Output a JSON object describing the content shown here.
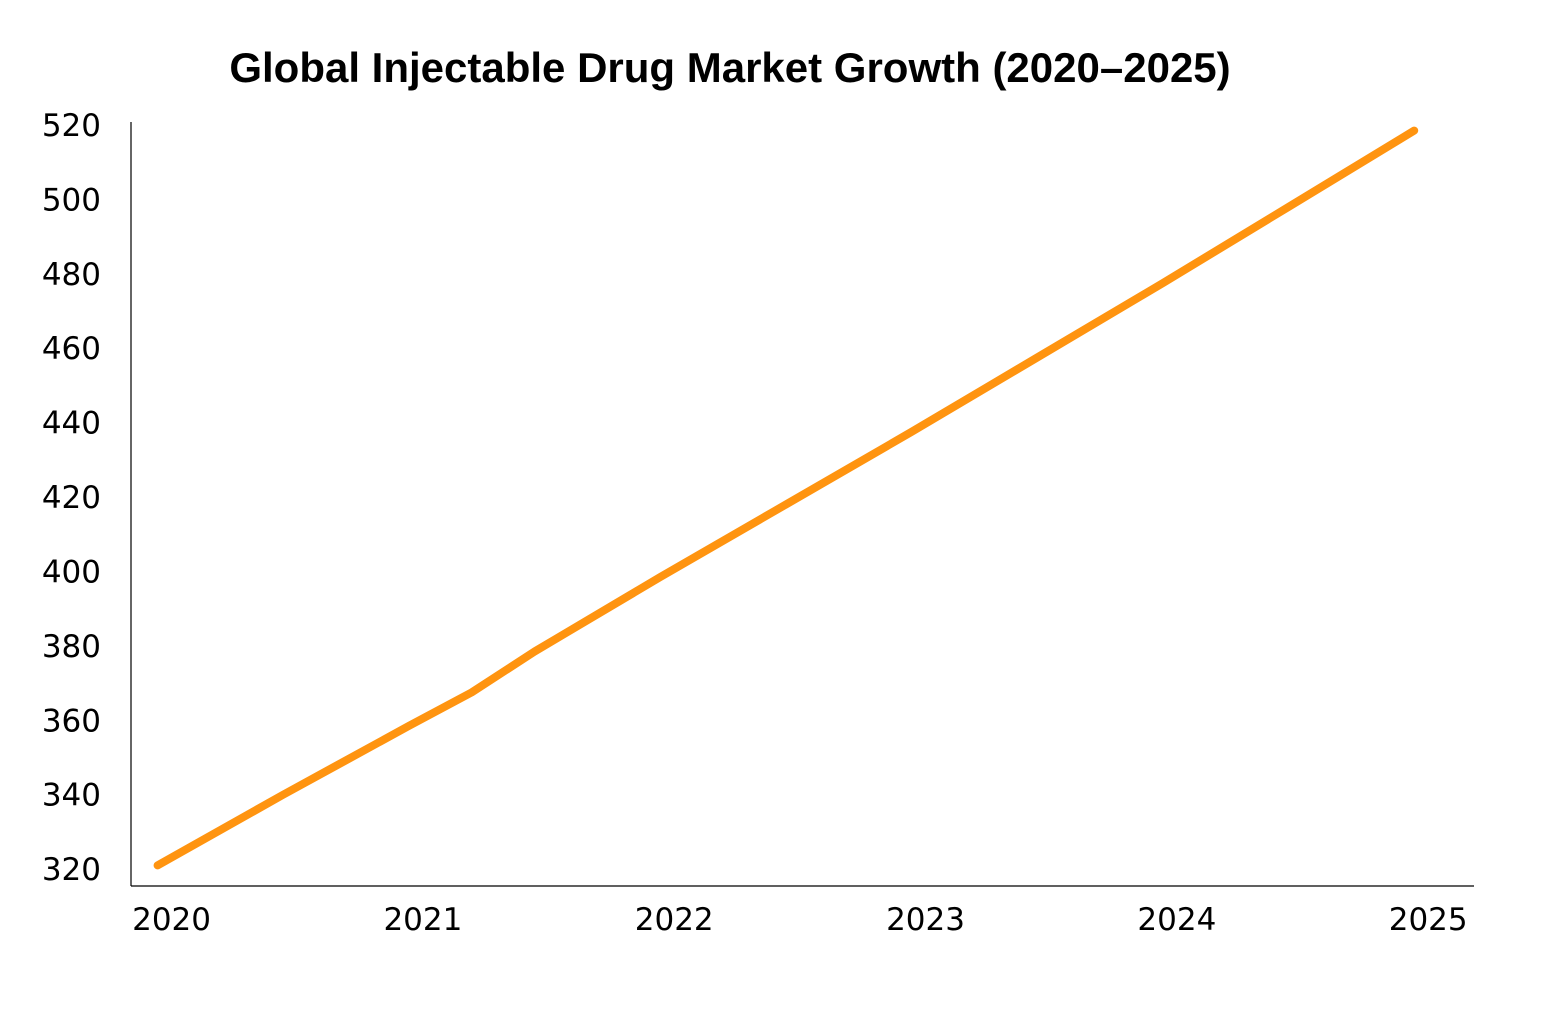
{
  "chart_data": {
    "type": "line",
    "title": "Global Injectable Drug Market Growth (2020–2025)",
    "xlabel": "",
    "ylabel": "",
    "x": [
      2020,
      2020.5,
      2021,
      2021.25,
      2021.5,
      2022,
      2022.5,
      2023,
      2023.5,
      2024,
      2024.5,
      2025
    ],
    "x_ticks": [
      "2020",
      "2021",
      "2022",
      "2023",
      "2024",
      "2025"
    ],
    "y_ticks": [
      "320",
      "340",
      "360",
      "380",
      "400",
      "420",
      "440",
      "460",
      "480",
      "500",
      "520"
    ],
    "xlim": [
      2019.95,
      2025.23
    ],
    "ylim": [
      316,
      520
    ],
    "series": [
      {
        "values": [
          321,
          340,
          358.5,
          367.5,
          378.5,
          398.5,
          418,
          437.5,
          457.5,
          477.5,
          498,
          518.5
        ],
        "color": "#ff9410"
      }
    ],
    "grid": false,
    "legend": "none"
  }
}
